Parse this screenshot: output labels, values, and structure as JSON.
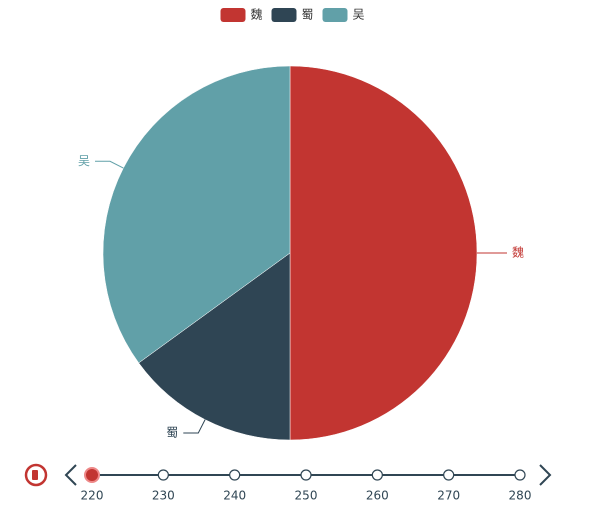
{
  "chart_data": {
    "type": "pie",
    "categories": [
      "魏",
      "蜀",
      "吴"
    ],
    "values": [
      50,
      15,
      35
    ],
    "colors": [
      "#c23531",
      "#2f4554",
      "#61a0a8"
    ],
    "legend": "top",
    "timeline": {
      "values": [
        220,
        230,
        240,
        250,
        260,
        270,
        280
      ],
      "selected": 220
    }
  }
}
